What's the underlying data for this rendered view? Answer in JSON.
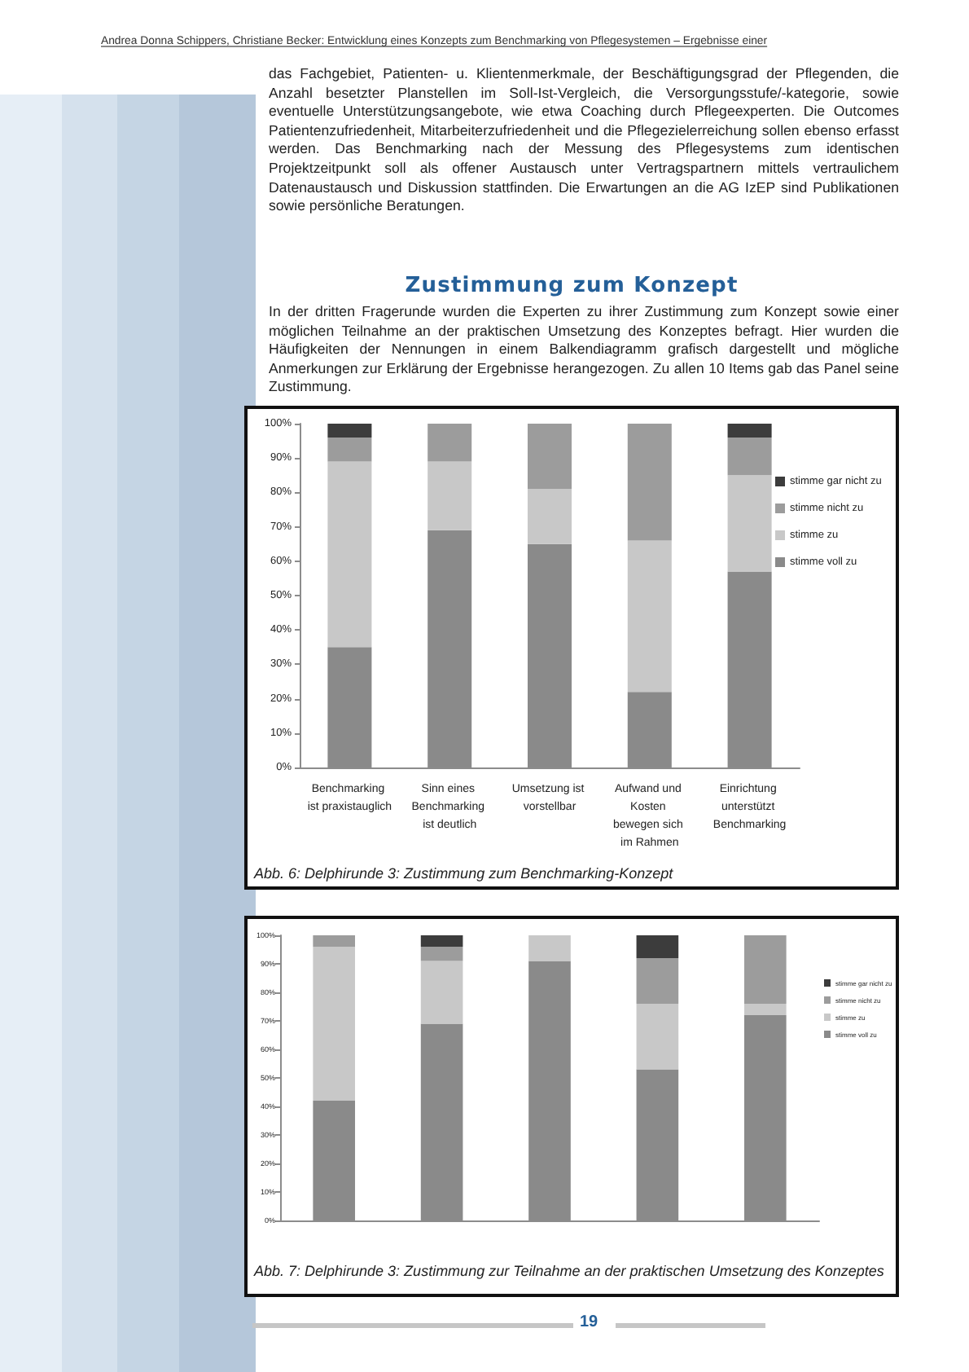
{
  "chart_data": [
    {
      "type": "bar",
      "stacked": true,
      "title": "Zustimmung zum Konzept",
      "annotations": [
        "Andrea Donna Schippers, Christiane Becker: Entwicklung eines Konzepts zum Benchmarking von Pflegesystemen – Ergebnisse einer",
        "das Fachgebiet, Patienten- u. Klientenmerkmale, der Beschäftigungsgrad der Pflegenden, die Anzahl besetzter Planstellen im Soll-Ist-Vergleich, die Versorgungsstufe/-kategorie, sowie eventuelle Unterstützungsangebote, wie etwa Coaching durch Pflegeexperten. Die Outcomes Patientenzufriedenheit, Mitarbeiterzufriedenheit und die Pflegezielerreichung sollen ebenso erfasst werden. Das Benchmarking nach der Messung des Pflegesystems zum identischen Projektzeitpunkt soll als offener Austausch unter Vertragspartnern mittels vertraulichem Datenaustausch und Diskussion stattfinden. Die Erwartungen an die AG IzEP sind Publikationen sowie persönliche Beratungen.",
        "In der dritten Fragerunde wurden die Experten zu ihrer Zustimmung zum Konzept sowie einer möglichen Teilnahme an der praktischen Umsetzung des Konzeptes befragt. Hier wurden die Häufigkeiten der Nennungen in einem Balkendiagramm grafisch dargestellt und mögliche Anmerkungen zur Erklärung der Ergebnisse herangezogen. Zu allen 10 Items gab das Panel seine Zustimmung.",
        "Abb. 6: Delphirunde 3: Zustimmung zum Benchmarking-Konzept"
      ],
      "categories": [
        "Benchmarking ist praxistauglich",
        "Sinn eines Benchmarking ist deutlich",
        "Umsetzung ist vorstellbar",
        "Aufwand und Kosten bewegen sich im Rahmen",
        "Einrichtung unterstützt Benchmarking"
      ],
      "series": [
        {
          "name": "stimme voll zu",
          "color": "#8a8a8a",
          "values": [
            35,
            69,
            65,
            22,
            57
          ]
        },
        {
          "name": "stimme zu",
          "color": "#c8c8c8",
          "values": [
            54,
            20,
            16,
            44,
            28
          ]
        },
        {
          "name": "stimme nicht zu",
          "color": "#9c9c9c",
          "values": [
            7,
            11,
            19,
            34,
            11
          ]
        },
        {
          "name": "stimme gar nicht zu",
          "color": "#3c3c3c",
          "values": [
            4,
            0,
            0,
            0,
            4
          ]
        }
      ],
      "ylim": [
        0,
        100
      ],
      "yticks": [
        {
          "value": 0,
          "label": "0%"
        },
        {
          "value": 10,
          "label": "10%"
        },
        {
          "value": 20,
          "label": "20%"
        },
        {
          "value": 30,
          "label": "30%"
        },
        {
          "value": 40,
          "label": "40%"
        },
        {
          "value": 50,
          "label": "50%"
        },
        {
          "value": 60,
          "label": "60%"
        },
        {
          "value": 70,
          "label": "70%"
        },
        {
          "value": 80,
          "label": "80%"
        },
        {
          "value": 90,
          "label": "90%"
        },
        {
          "value": 100,
          "label": "100%"
        }
      ],
      "grid": false,
      "legend": "right"
    },
    {
      "type": "bar",
      "stacked": true,
      "annotations": [
        "Abb. 7: Delphirunde 3: Zustimmung zur Teilnahme an der praktischen Umsetzung des Konzeptes",
        "19"
      ],
      "categories": [
        null,
        null,
        null,
        null,
        null
      ],
      "series": [
        {
          "name": "stimme voll zu",
          "color": "#8a8a8a",
          "values": [
            42,
            69,
            91,
            53,
            72
          ]
        },
        {
          "name": "stimme zu",
          "color": "#c8c8c8",
          "values": [
            54,
            22,
            9,
            23,
            4
          ]
        },
        {
          "name": "stimme nicht zu",
          "color": "#9c9c9c",
          "values": [
            4,
            5,
            0,
            16,
            24
          ]
        },
        {
          "name": "stimme gar nicht zu",
          "color": "#3c3c3c",
          "values": [
            0,
            4,
            0,
            8,
            0
          ]
        }
      ],
      "ylim": [
        0,
        100
      ],
      "yticks": [
        {
          "value": 0,
          "label": "0%"
        },
        {
          "value": 10,
          "label": "10%"
        },
        {
          "value": 20,
          "label": "20%"
        },
        {
          "value": 30,
          "label": "30%"
        },
        {
          "value": 40,
          "label": "40%"
        },
        {
          "value": 50,
          "label": "50%"
        },
        {
          "value": 60,
          "label": "60%"
        },
        {
          "value": 70,
          "label": "70%"
        },
        {
          "value": 80,
          "label": "80%"
        },
        {
          "value": 90,
          "label": "90%"
        },
        {
          "value": 100,
          "label": "100%"
        }
      ],
      "grid": false,
      "legend": "right"
    }
  ]
}
